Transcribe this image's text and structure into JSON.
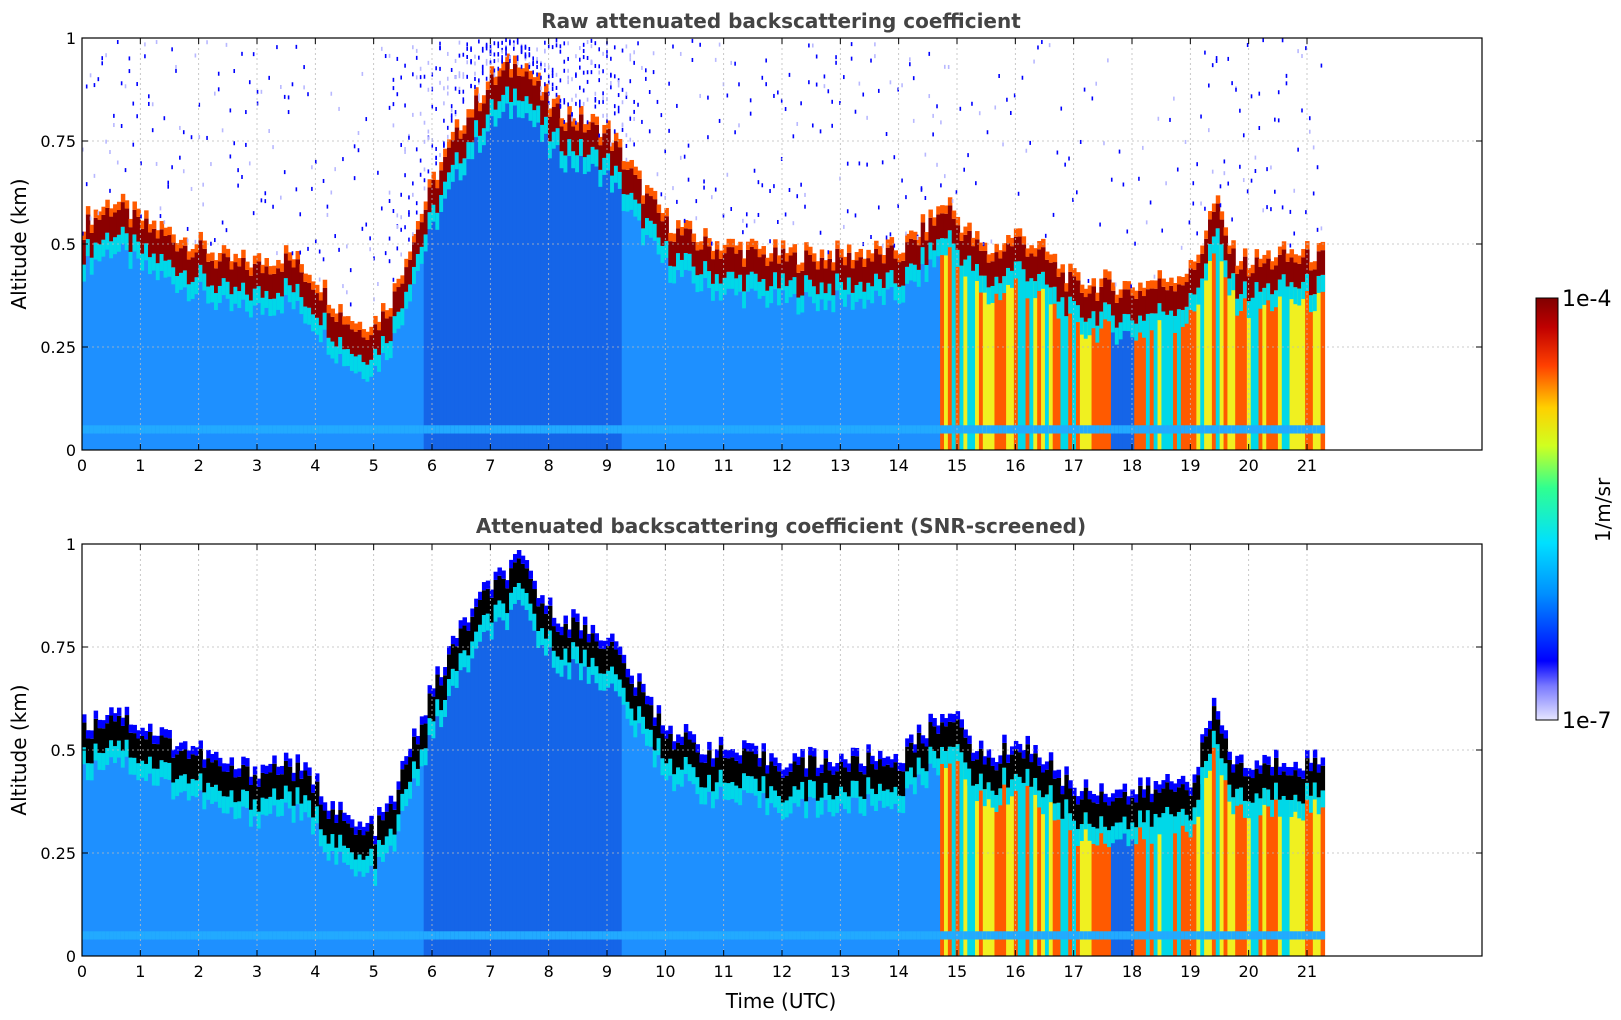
{
  "chart_data": [
    {
      "type": "heatmap",
      "title": "Raw attenuated backscattering coefficient",
      "xlabel": "",
      "ylabel": "Altitude (km)",
      "xlim": [
        0,
        24
      ],
      "ylim": [
        0,
        1
      ],
      "x_ticks": [
        0,
        1,
        2,
        3,
        4,
        5,
        6,
        7,
        8,
        9,
        10,
        11,
        12,
        13,
        14,
        15,
        16,
        17,
        18,
        19,
        20,
        21
      ],
      "y_ticks": [
        0,
        0.25,
        0.5,
        0.75,
        1
      ],
      "y_tick_labels": [
        "0",
        "0.25",
        "0.5",
        "0.75",
        "1"
      ],
      "grid": true,
      "data_end_time": 21.3,
      "layer_top_km": [
        [
          0,
          0.5
        ],
        [
          0.5,
          0.55
        ],
        [
          1,
          0.5
        ],
        [
          1.5,
          0.47
        ],
        [
          2,
          0.44
        ],
        [
          2.5,
          0.4
        ],
        [
          3,
          0.4
        ],
        [
          3.5,
          0.42
        ],
        [
          4,
          0.36
        ],
        [
          4.3,
          0.3
        ],
        [
          4.7,
          0.25
        ],
        [
          5,
          0.26
        ],
        [
          5.3,
          0.32
        ],
        [
          5.6,
          0.45
        ],
        [
          6,
          0.6
        ],
        [
          6.5,
          0.75
        ],
        [
          7,
          0.85
        ],
        [
          7.5,
          0.9
        ],
        [
          8,
          0.78
        ],
        [
          8.5,
          0.75
        ],
        [
          9,
          0.72
        ],
        [
          9.5,
          0.6
        ],
        [
          10,
          0.5
        ],
        [
          10.5,
          0.46
        ],
        [
          11,
          0.44
        ],
        [
          12,
          0.42
        ],
        [
          13,
          0.42
        ],
        [
          14,
          0.43
        ],
        [
          14.5,
          0.5
        ],
        [
          14.8,
          0.55
        ],
        [
          15,
          0.5
        ],
        [
          15.5,
          0.42
        ],
        [
          16,
          0.47
        ],
        [
          16.5,
          0.42
        ],
        [
          17,
          0.35
        ],
        [
          17.5,
          0.35
        ],
        [
          18,
          0.34
        ],
        [
          18.5,
          0.36
        ],
        [
          19,
          0.38
        ],
        [
          19.4,
          0.55
        ],
        [
          19.7,
          0.42
        ],
        [
          20,
          0.4
        ],
        [
          20.5,
          0.42
        ],
        [
          21,
          0.42
        ],
        [
          21.3,
          0.42
        ]
      ]
    },
    {
      "type": "heatmap",
      "title": "Attenuated backscattering coefficient (SNR-screened)",
      "xlabel": "Time (UTC)",
      "ylabel": "Altitude (km)",
      "xlim": [
        0,
        24
      ],
      "ylim": [
        0,
        1
      ],
      "x_ticks": [
        0,
        1,
        2,
        3,
        4,
        5,
        6,
        7,
        8,
        9,
        10,
        11,
        12,
        13,
        14,
        15,
        16,
        17,
        18,
        19,
        20,
        21
      ],
      "y_ticks": [
        0,
        0.25,
        0.5,
        0.75,
        1
      ],
      "y_tick_labels": [
        "0",
        "0.25",
        "0.5",
        "0.75",
        "1"
      ],
      "grid": true,
      "data_end_time": 21.3,
      "layer_top_km": [
        [
          0,
          0.5
        ],
        [
          0.5,
          0.55
        ],
        [
          1,
          0.5
        ],
        [
          1.5,
          0.47
        ],
        [
          2,
          0.44
        ],
        [
          2.5,
          0.4
        ],
        [
          3,
          0.4
        ],
        [
          3.5,
          0.42
        ],
        [
          4,
          0.36
        ],
        [
          4.3,
          0.3
        ],
        [
          4.7,
          0.25
        ],
        [
          5,
          0.26
        ],
        [
          5.3,
          0.32
        ],
        [
          5.6,
          0.45
        ],
        [
          6,
          0.6
        ],
        [
          6.5,
          0.75
        ],
        [
          7,
          0.85
        ],
        [
          7.5,
          0.9
        ],
        [
          8,
          0.78
        ],
        [
          8.5,
          0.75
        ],
        [
          9,
          0.72
        ],
        [
          9.5,
          0.6
        ],
        [
          10,
          0.5
        ],
        [
          10.5,
          0.46
        ],
        [
          11,
          0.44
        ],
        [
          12,
          0.42
        ],
        [
          13,
          0.42
        ],
        [
          14,
          0.43
        ],
        [
          14.5,
          0.5
        ],
        [
          14.8,
          0.55
        ],
        [
          15,
          0.5
        ],
        [
          15.5,
          0.42
        ],
        [
          16,
          0.47
        ],
        [
          16.5,
          0.42
        ],
        [
          17,
          0.35
        ],
        [
          17.5,
          0.35
        ],
        [
          18,
          0.34
        ],
        [
          18.5,
          0.36
        ],
        [
          19,
          0.38
        ],
        [
          19.4,
          0.55
        ],
        [
          19.7,
          0.42
        ],
        [
          20,
          0.4
        ],
        [
          20.5,
          0.42
        ],
        [
          21,
          0.42
        ],
        [
          21.3,
          0.42
        ]
      ]
    }
  ],
  "colorbar": {
    "label": "1/m/sr",
    "max_label": "1e-4",
    "min_label": "1e-7",
    "range": [
      1e-07,
      0.0001
    ],
    "scale": "log",
    "colormap": "jet"
  },
  "colors": {
    "background_blue": "#1e90ff",
    "light_blue": "#22aaff",
    "deep_blue": "#1565e8",
    "cyan": "#00d8e8",
    "layer_red": "#8b0000",
    "orange": "#ff5a00",
    "yellow": "#f0f020",
    "screened_black": "#000000",
    "title_gray": "#444444"
  }
}
